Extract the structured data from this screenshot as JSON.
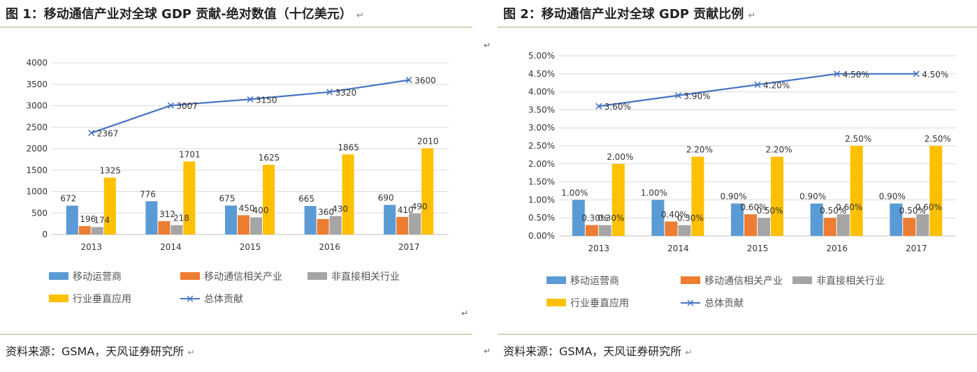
{
  "left": {
    "title": "图 1：移动通信产业对全球 GDP 贡献-绝对数值（十亿美元）",
    "source": "资料来源：GSMA，天风证券研究所",
    "chart_data": {
      "type": "bar",
      "categories": [
        "2013",
        "2014",
        "2015",
        "2016",
        "2017"
      ],
      "y_ticks": [
        "0",
        "500",
        "1000",
        "1500",
        "2000",
        "2500",
        "3000",
        "3500",
        "4000"
      ],
      "ylim": [
        0,
        4000
      ],
      "grid": true,
      "legend_position": "bottom",
      "series": [
        {
          "name": "移动运营商",
          "type": "bar",
          "color": "#5b9bd5",
          "values": [
            672,
            776,
            675,
            665,
            690
          ],
          "labels": [
            "672",
            "776",
            "675",
            "665",
            "690"
          ]
        },
        {
          "name": "移动通信相关产业",
          "type": "bar",
          "color": "#ed7d31",
          "values": [
            196,
            312,
            450,
            360,
            410
          ],
          "labels": [
            "196",
            "312",
            "450",
            "360",
            "410"
          ]
        },
        {
          "name": "非直接相关行业",
          "type": "bar",
          "color": "#a5a5a5",
          "values": [
            174,
            218,
            400,
            430,
            490
          ],
          "labels": [
            "174",
            "218",
            "400",
            "430",
            "490"
          ]
        },
        {
          "name": "行业垂直应用",
          "type": "bar",
          "color": "#ffc000",
          "values": [
            1325,
            1701,
            1625,
            1865,
            2010
          ],
          "labels": [
            "1325",
            "1701",
            "1625",
            "1865",
            "2010"
          ]
        },
        {
          "name": "总体贡献",
          "type": "line",
          "color": "#4472c4",
          "values": [
            2367,
            3007,
            3150,
            3320,
            3600
          ],
          "labels": [
            "2367",
            "3007",
            "3150",
            "3320",
            "3600"
          ]
        }
      ]
    }
  },
  "right": {
    "title": "图 2：移动通信产业对全球 GDP 贡献比例",
    "source": "资料来源：GSMA，天风证券研究所",
    "chart_data": {
      "type": "bar",
      "categories": [
        "2013",
        "2014",
        "2015",
        "2016",
        "2017"
      ],
      "y_ticks": [
        "0.00%",
        "0.50%",
        "1.00%",
        "1.50%",
        "2.00%",
        "2.50%",
        "3.00%",
        "3.50%",
        "4.00%",
        "4.50%",
        "5.00%"
      ],
      "ylim": [
        0,
        5
      ],
      "grid": true,
      "legend_position": "bottom",
      "series": [
        {
          "name": "移动运营商",
          "type": "bar",
          "color": "#5b9bd5",
          "values": [
            1.0,
            1.0,
            0.9,
            0.9,
            0.9
          ],
          "labels": [
            "1.00%",
            "1.00%",
            "0.90%",
            "0.90%",
            "0.90%"
          ]
        },
        {
          "name": "移动通信相关产业",
          "type": "bar",
          "color": "#ed7d31",
          "values": [
            0.3,
            0.4,
            0.6,
            0.5,
            0.5
          ],
          "labels": [
            "0.30%",
            "0.40%",
            "0.60%",
            "0.50%",
            "0.50%"
          ]
        },
        {
          "name": "非直接相关行业",
          "type": "bar",
          "color": "#a5a5a5",
          "values": [
            0.3,
            0.3,
            0.5,
            0.6,
            0.6
          ],
          "labels": [
            "0.30%",
            "0.30%",
            "0.50%",
            "0.60%",
            "0.60%"
          ]
        },
        {
          "name": "行业垂直应用",
          "type": "bar",
          "color": "#ffc000",
          "values": [
            2.0,
            2.2,
            2.2,
            2.5,
            2.5
          ],
          "labels": [
            "2.00%",
            "2.20%",
            "2.20%",
            "2.50%",
            "2.50%"
          ]
        },
        {
          "name": "总体贡献",
          "type": "line",
          "color": "#4472c4",
          "values": [
            3.6,
            3.9,
            4.2,
            4.5,
            4.5
          ],
          "labels": [
            "3.60%",
            "3.90%",
            "4.20%",
            "4.50%",
            "4.50%"
          ]
        }
      ]
    }
  },
  "marks": {
    "return": "↵"
  }
}
